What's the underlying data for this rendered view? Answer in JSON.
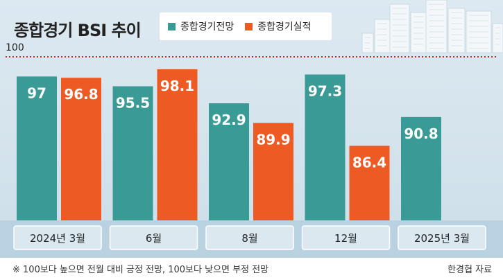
{
  "header": {
    "title": "종합경기 BSI 추이"
  },
  "legend": [
    {
      "label": "종합경기전망",
      "color": "#3a9a96"
    },
    {
      "label": "종합경기실적",
      "color": "#ee5a24"
    }
  ],
  "reference_line": {
    "label": "100",
    "value": 100,
    "color": "#dd2222"
  },
  "footer": {
    "note": "※ 100보다 높으면 전월 대비 긍정 전망, 100보다 낮으면 부정 전망",
    "source": "한경협 자료"
  },
  "chart_data": {
    "type": "bar",
    "categories": [
      "2024년 3월",
      "6월",
      "8월",
      "12월",
      "2025년 3월"
    ],
    "series": [
      {
        "name": "종합경기전망",
        "values": [
          97,
          95.5,
          92.9,
          97.3,
          90.8
        ],
        "color": "#3a9a96"
      },
      {
        "name": "종합경기실적",
        "values": [
          96.8,
          98.1,
          89.9,
          86.4,
          null
        ],
        "color": "#ee5a24"
      }
    ],
    "data_labels": [
      [
        "97",
        "95.5",
        "92.9",
        "97.3",
        "90.8"
      ],
      [
        "96.8",
        "98.1",
        "89.9",
        "86.4",
        ""
      ]
    ],
    "grid": false,
    "legend_position": "top"
  }
}
